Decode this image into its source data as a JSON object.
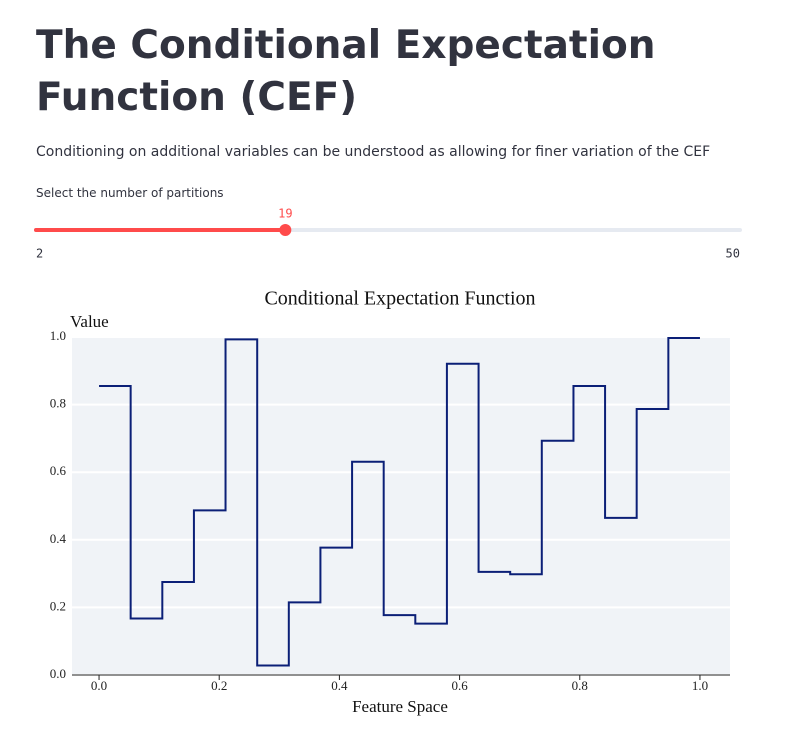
{
  "header": {
    "title": "The Conditional Expectation Function (CEF)",
    "subtitle": "Conditioning on additional variables can be understood as allowing for finer variation of the CEF"
  },
  "slider": {
    "label": "Select the number of partitions",
    "value": 19,
    "min": 2,
    "max": 50,
    "color": "#ff4b4b"
  },
  "chart_data": {
    "type": "line",
    "line_shape": "hv",
    "title": "Conditional Expectation Function",
    "x_label": "Feature Space",
    "y_label": "Value",
    "x": [
      0,
      0.0526,
      0.1053,
      0.1579,
      0.2105,
      0.2632,
      0.3158,
      0.3684,
      0.4211,
      0.4737,
      0.5263,
      0.5789,
      0.6316,
      0.6842,
      0.7368,
      0.7895,
      0.8421,
      0.8947,
      0.9474,
      1.0
    ],
    "series": [
      {
        "name": "CEF",
        "color": "#0b1f77",
        "values": [
          0.855,
          0.167,
          0.275,
          0.487,
          0.993,
          0.028,
          0.215,
          0.377,
          0.631,
          0.177,
          0.152,
          0.921,
          0.305,
          0.298,
          0.693,
          0.855,
          0.465,
          0.787,
          0.997,
          0.997
        ]
      }
    ],
    "xlim": [
      -0.045,
      1.05
    ],
    "ylim": [
      0,
      1
    ],
    "xticks": [
      {
        "value": 0,
        "label": "0.0"
      },
      {
        "value": 0.2,
        "label": "0.2"
      },
      {
        "value": 0.4,
        "label": "0.4"
      },
      {
        "value": 0.6,
        "label": "0.6"
      },
      {
        "value": 0.8,
        "label": "0.8"
      },
      {
        "value": 1,
        "label": "1.0"
      }
    ],
    "yticks": [
      {
        "value": 0,
        "label": "0.0"
      },
      {
        "value": 0.2,
        "label": "0.2"
      },
      {
        "value": 0.4,
        "label": "0.4"
      },
      {
        "value": 0.6,
        "label": "0.6"
      },
      {
        "value": 0.8,
        "label": "0.8"
      },
      {
        "value": 1,
        "label": "1.0"
      }
    ],
    "grid": true,
    "background": "#f0f3f7"
  }
}
